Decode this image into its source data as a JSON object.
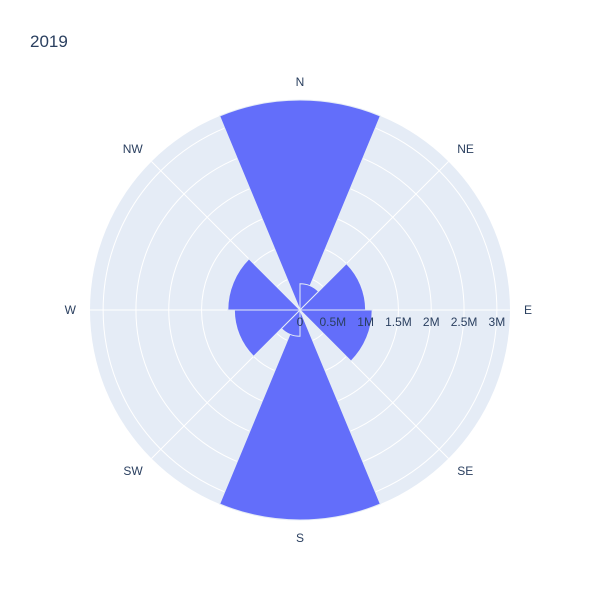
{
  "chart_data": {
    "type": "barpolar",
    "title": "2019",
    "directions": [
      "N",
      "NE",
      "E",
      "SE",
      "S",
      "SW",
      "W",
      "NW"
    ],
    "radial_ticks": [
      {
        "value": 0,
        "label": "0"
      },
      {
        "value": 500000,
        "label": "0.5M"
      },
      {
        "value": 1000000,
        "label": "1M"
      },
      {
        "value": 1500000,
        "label": "1.5M"
      },
      {
        "value": 2000000,
        "label": "2M"
      },
      {
        "value": 2500000,
        "label": "2.5M"
      },
      {
        "value": 3000000,
        "label": "3M"
      }
    ],
    "radial_range": [
      0,
      3200000
    ],
    "bar_color": "#636efa",
    "polar_bg_color": "#e5ecf6",
    "grid_color": "#ffffff",
    "series": [
      {
        "bars": [
          {
            "direction": "N",
            "value": 3200000
          },
          {
            "direction": "NNE",
            "value": 400000
          },
          {
            "direction": "ENE",
            "value": 1000000
          },
          {
            "direction": "ESE",
            "value": 1100000
          },
          {
            "direction": "S",
            "value": 3200000
          },
          {
            "direction": "SSW",
            "value": 400000
          },
          {
            "direction": "WSW",
            "value": 1000000
          },
          {
            "direction": "WNW",
            "value": 1100000
          }
        ]
      }
    ]
  }
}
